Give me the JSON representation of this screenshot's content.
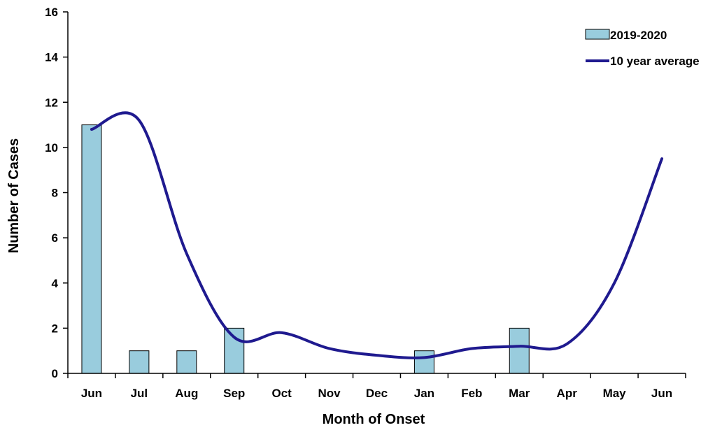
{
  "chart_data": {
    "type": "bar",
    "categories": [
      "Jun",
      "Jul",
      "Aug",
      "Sep",
      "Oct",
      "Nov",
      "Dec",
      "Jan",
      "Feb",
      "Mar",
      "Apr",
      "May",
      "Jun"
    ],
    "series": [
      {
        "name": "2019-2020",
        "type": "bar",
        "color": "#99CCDD",
        "values": [
          11,
          1,
          1,
          2,
          0,
          0,
          0,
          1,
          0,
          2,
          0,
          0,
          0
        ]
      },
      {
        "name": "10 year average",
        "type": "line",
        "smooth": true,
        "color": "#1F1A8F",
        "values": [
          10.8,
          11.2,
          5.3,
          1.6,
          1.8,
          1.1,
          0.8,
          0.7,
          1.1,
          1.2,
          1.3,
          4.0,
          9.5
        ]
      }
    ],
    "title": "",
    "xlabel": "Month of Onset",
    "ylabel": "Number of Cases",
    "ylim": [
      0,
      16
    ],
    "yticks": [
      0,
      2,
      4,
      6,
      8,
      10,
      12,
      14,
      16
    ],
    "grid": false,
    "legend_position": "top-right"
  }
}
